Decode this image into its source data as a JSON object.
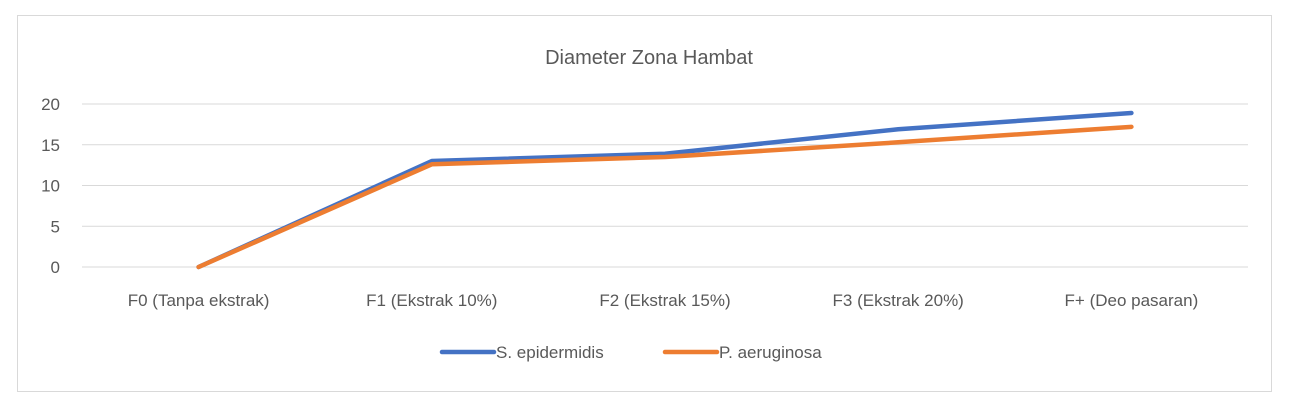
{
  "chart_data": {
    "type": "line",
    "title": "Diameter Zona Hambat",
    "xlabel": "",
    "ylabel": "",
    "categories": [
      "F0 (Tanpa ekstrak)",
      "F1 (Ekstrak 10%)",
      "F2 (Ekstrak 15%)",
      "F3 (Ekstrak 20%)",
      "F+ (Deo pasaran)"
    ],
    "ylim": [
      0,
      20
    ],
    "yticks": [
      "0",
      "5",
      "10",
      "15",
      "20"
    ],
    "grid": true,
    "legend_position": "bottom",
    "series": [
      {
        "name": "S. epidermidis",
        "color": "#4472c4",
        "values": [
          0,
          13.0,
          13.9,
          16.9,
          18.9
        ]
      },
      {
        "name": "P. aeruginosa",
        "color": "#ed7d31",
        "values": [
          0,
          12.6,
          13.5,
          15.3,
          17.2
        ]
      }
    ]
  }
}
